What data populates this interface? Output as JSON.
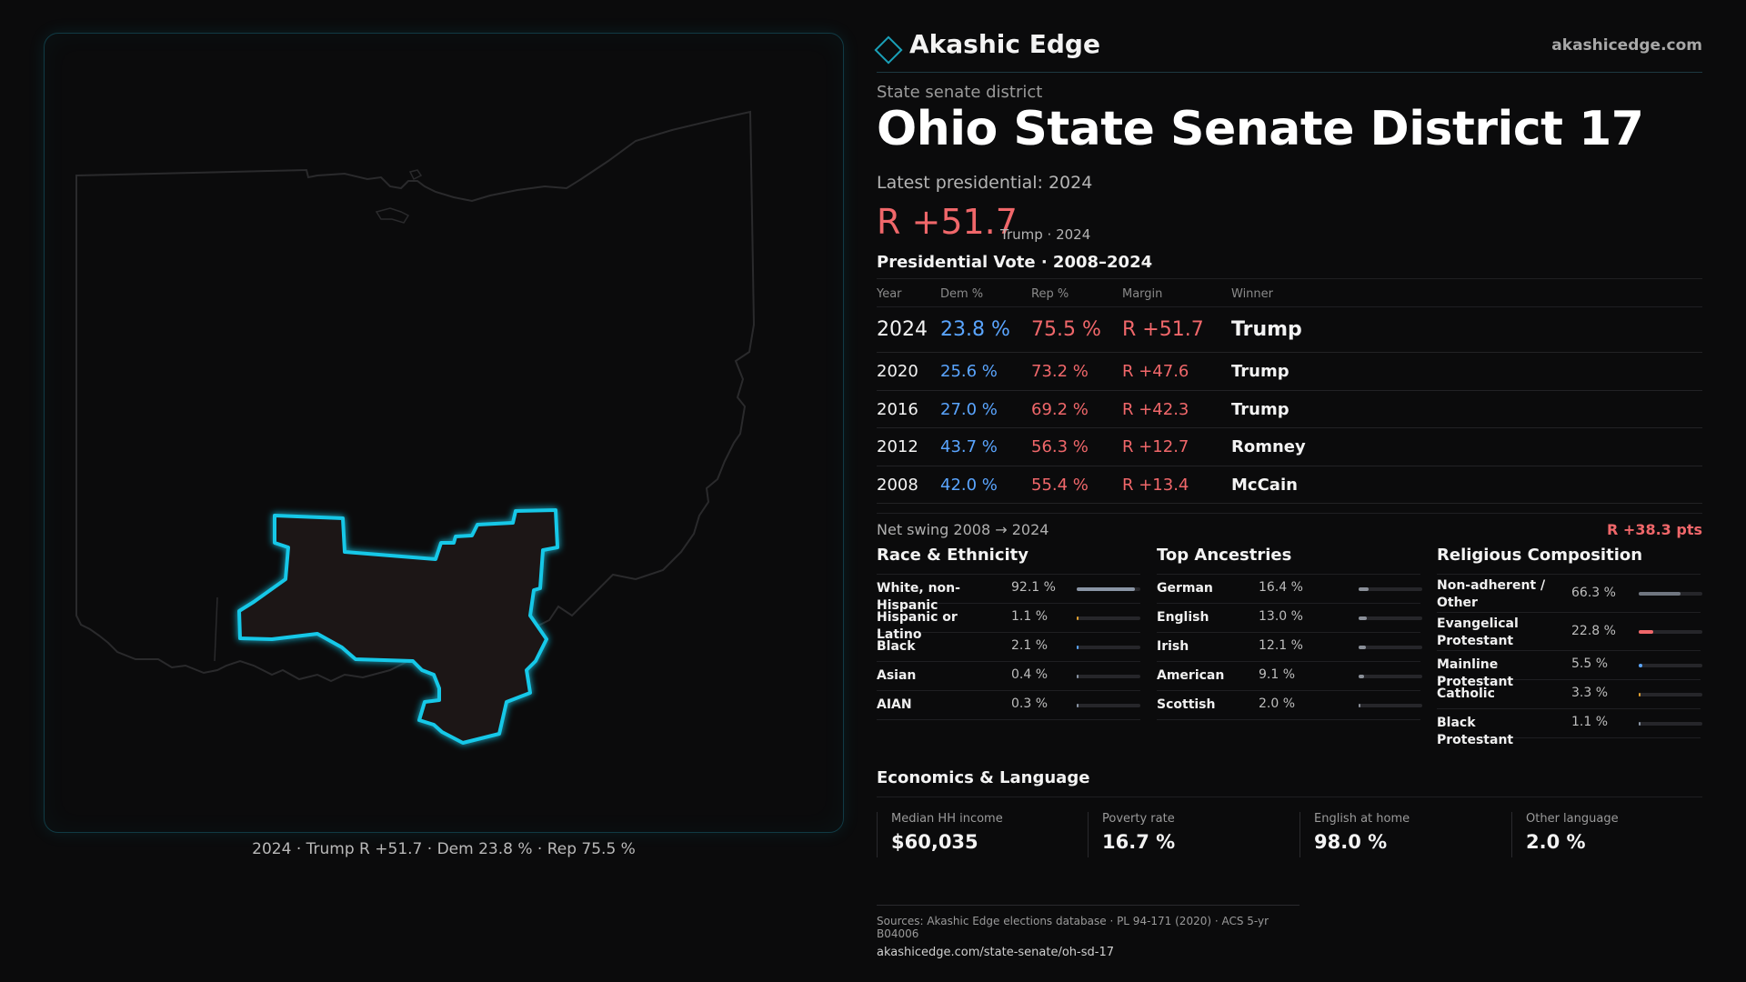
{
  "brand": {
    "name": "Akashic Edge",
    "url": "akashicedge.com"
  },
  "kicker": "State senate district",
  "title": "Ohio State Senate District 17",
  "latest_label": "Latest presidential: 2024",
  "latest_margin": "R +51.7",
  "latest_sub": "Trump · 2024",
  "pv_title": "Presidential Vote · 2008–2024",
  "table": {
    "headers": [
      "Year",
      "Dem %",
      "Rep %",
      "Margin",
      "Winner"
    ],
    "rows": [
      {
        "year": "2024",
        "dem": "23.8 %",
        "rep": "75.5 %",
        "margin": "R +51.7",
        "winner": "Trump"
      },
      {
        "year": "2020",
        "dem": "25.6 %",
        "rep": "73.2 %",
        "margin": "R +47.6",
        "winner": "Trump"
      },
      {
        "year": "2016",
        "dem": "27.0 %",
        "rep": "69.2 %",
        "margin": "R +42.3",
        "winner": "Trump"
      },
      {
        "year": "2012",
        "dem": "43.7 %",
        "rep": "56.3 %",
        "margin": "R +12.7",
        "winner": "Romney"
      },
      {
        "year": "2008",
        "dem": "42.0 %",
        "rep": "55.4 %",
        "margin": "R +13.4",
        "winner": "McCain"
      }
    ]
  },
  "swing": {
    "label": "Net swing 2008 → 2024",
    "value": "R +38.3 pts"
  },
  "race": {
    "title": "Race & Ethnicity",
    "items": [
      {
        "label": "White, non-Hispanic",
        "value": "92.1 %",
        "level": 0.921,
        "color": "#8a95a5"
      },
      {
        "label": "Hispanic or Latino",
        "value": "1.1 %",
        "level": 0.011,
        "color": "#e0a030"
      },
      {
        "label": "Black",
        "value": "2.1 %",
        "level": 0.021,
        "color": "#5aa5ff"
      },
      {
        "label": "Asian",
        "value": "0.4 %",
        "level": 0.004,
        "color": "#8a95a5"
      },
      {
        "label": "AIAN",
        "value": "0.3 %",
        "level": 0.003,
        "color": "#8a95a5"
      }
    ]
  },
  "ancestry": {
    "title": "Top Ancestries",
    "items": [
      {
        "label": "German",
        "value": "16.4 %",
        "level": 0.164,
        "color": "#8a8f98"
      },
      {
        "label": "English",
        "value": "13.0 %",
        "level": 0.13,
        "color": "#8a8f98"
      },
      {
        "label": "Irish",
        "value": "12.1 %",
        "level": 0.121,
        "color": "#8a8f98"
      },
      {
        "label": "American",
        "value": "9.1 %",
        "level": 0.091,
        "color": "#8a8f98"
      },
      {
        "label": "Scottish",
        "value": "2.0 %",
        "level": 0.02,
        "color": "#8a8f98"
      }
    ]
  },
  "religion": {
    "title": "Religious Composition",
    "items": [
      {
        "label": "Non-adherent / Other",
        "value": "66.3 %",
        "level": 0.663,
        "color": "#707680"
      },
      {
        "label": "Evangelical Protestant",
        "value": "22.8 %",
        "level": 0.228,
        "color": "#f0676a"
      },
      {
        "label": "Mainline Protestant",
        "value": "5.5 %",
        "level": 0.055,
        "color": "#5aa5ff"
      },
      {
        "label": "Catholic",
        "value": "3.3 %",
        "level": 0.033,
        "color": "#e0a030"
      },
      {
        "label": "Black Protestant",
        "value": "1.1 %",
        "level": 0.011,
        "color": "#8a95a5"
      }
    ]
  },
  "econ": {
    "title": "Economics & Language",
    "items": [
      {
        "label": "Median HH income",
        "value": "$60,035"
      },
      {
        "label": "Poverty rate",
        "value": "16.7 %"
      },
      {
        "label": "English at home",
        "value": "98.0 %"
      },
      {
        "label": "Other language",
        "value": "2.0 %"
      }
    ]
  },
  "sources": {
    "line1": "Sources: Akashic Edge elections database · PL 94-171 (2020) · ACS 5-yr B04006",
    "line2": "akashicedge.com/state-senate/oh-sd-17"
  },
  "map_caption": "2024 · Trump R +51.7 · Dem 23.8 % · Rep 75.5 %",
  "colors": {
    "dem": "#5aa5ff",
    "rep": "#f0676a",
    "accent": "#1ad0f0"
  }
}
